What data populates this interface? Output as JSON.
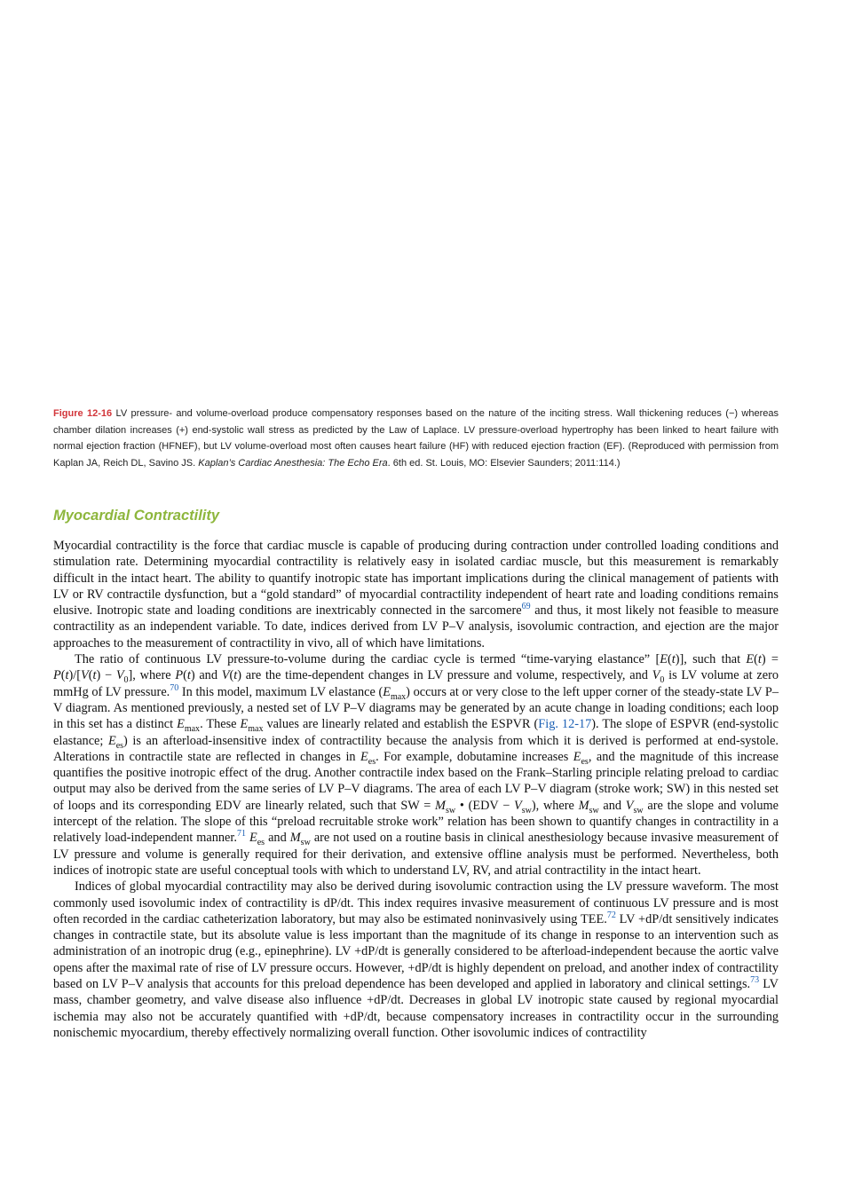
{
  "caption": {
    "runs": [
      {
        "label": "Figure 12-16"
      },
      " LV pressure- and volume-overload produce compensatory responses based on the nature of the inciting stress. Wall thickening reduces (−) whereas chamber dilation increases (+) end-systolic wall stress as predicted by the Law of Laplace. LV pressure-overload hypertrophy has been linked to heart failure with normal ejection fraction (HFNEF), but LV volume-overload most often causes heart failure (HF) with reduced ejection fraction (EF). (Reproduced with permission from Kaplan JA, Reich DL, Savino JS. ",
      {
        "i": "Kaplan’s Cardiac Anesthesia: The Echo Era"
      },
      ". 6th ed. St. Louis, MO: Elsevier Saunders; 2011:114.)"
    ]
  },
  "section": {
    "heading": "Myocardial Contractility",
    "paragraphs": [
      {
        "runs": [
          "Myocardial contractility is the force that cardiac muscle is capable of producing during contraction under controlled loading conditions and stimulation rate. Determining myocardial contractility is relatively easy in isolated cardiac muscle, but this measurement is remarkably difficult in the intact heart. The ability to quantify inotropic state has important implications during the clinical management of patients with LV or RV contractile dysfunction, but a “gold standard” of myocardial contractility independent of heart rate and loading conditions remains elusive. Inotropic state and loading conditions are inextricably connected in the sarcomere",
          {
            "sup": "69"
          },
          " and thus, it most likely not feasible to measure contractility as an independent variable. To date, indices derived from LV P–V analysis, isovolumic contraction, and ejection are the major approaches to the measurement of contractility in vivo, all of which have limitations."
        ]
      },
      {
        "runs": [
          "The ratio of continuous LV pressure-to-volume during the cardiac cycle is termed “time-varying elastance” [",
          {
            "i": "E"
          },
          "(",
          {
            "i": "t"
          },
          ")], such that ",
          {
            "i": "E"
          },
          "(",
          {
            "i": "t"
          },
          ") = ",
          {
            "i": "P"
          },
          "(",
          {
            "i": "t"
          },
          ")/[",
          {
            "i": "V"
          },
          "(",
          {
            "i": "t"
          },
          ") − ",
          {
            "i": "V"
          },
          {
            "sub": "0"
          },
          "], where ",
          {
            "i": "P"
          },
          "(",
          {
            "i": "t"
          },
          ") and ",
          {
            "i": "V"
          },
          "(",
          {
            "i": "t"
          },
          ") are the time-dependent changes in LV pressure and volume, respectively, and ",
          {
            "i": "V"
          },
          {
            "sub": "0"
          },
          " is LV volume at zero mmHg of LV pressure.",
          {
            "sup": "70"
          },
          " In this model, maximum LV elastance (",
          {
            "i": "E"
          },
          {
            "sub": "max"
          },
          ") occurs at or very close to the left upper corner of the steady-state LV P–V diagram. As mentioned previously, a nested set of LV P–V diagrams may be generated by an acute change in loading conditions; each loop in this set has a distinct ",
          {
            "i": "E"
          },
          {
            "sub": "max"
          },
          ". These ",
          {
            "i": "E"
          },
          {
            "sub": "max"
          },
          " values are linearly related and establish the ESPVR (",
          {
            "link": "Fig. 12-17"
          },
          "). The slope of ESPVR (end-systolic elastance; ",
          {
            "i": "E"
          },
          {
            "sub": "es"
          },
          ") is an afterload-insensitive index of contractility because the analysis from which it is derived is performed at end-systole. Alterations in contractile state are reflected in changes in ",
          {
            "i": "E"
          },
          {
            "sub": "es"
          },
          ". For example, dobutamine increases ",
          {
            "i": "E"
          },
          {
            "sub": "es"
          },
          ", and the magnitude of this increase quantifies the positive inotropic effect of the drug. Another contractile index based on the Frank–Starling principle relating preload to cardiac output may also be derived from the same series of LV P–V diagrams. The area of each LV P–V diagram (stroke work; SW) in this nested set of loops and its corresponding EDV are linearly related, such that SW = ",
          {
            "i": "M"
          },
          {
            "sub": "sw"
          },
          " • (EDV − ",
          {
            "i": "V"
          },
          {
            "sub": "sw"
          },
          "), where ",
          {
            "i": "M"
          },
          {
            "sub": "sw"
          },
          " and ",
          {
            "i": "V"
          },
          {
            "sub": "sw"
          },
          " are the slope and volume intercept of the relation. The slope of this “preload recruitable stroke work” relation has been shown to quantify changes in contractility in a relatively load-independent manner.",
          {
            "sup": "71"
          },
          " ",
          {
            "i": "E"
          },
          {
            "sub": "es"
          },
          " and ",
          {
            "i": "M"
          },
          {
            "sub": "sw"
          },
          " are not used on a routine basis in clinical anesthesiology because invasive measurement of LV pressure and volume is generally required for their derivation, and extensive offline analysis must be performed. Nevertheless, both indices of inotropic state are useful conceptual tools with which to understand LV, RV, and atrial contractility in the intact heart."
        ]
      },
      {
        "runs": [
          "Indices of global myocardial contractility may also be derived during isovolumic contraction using the LV pressure waveform. The most commonly used isovolumic index of contractility is dP/dt. This index requires invasive measurement of continuous LV pressure and is most often recorded in the cardiac catheterization laboratory, but may also be estimated noninvasively using TEE.",
          {
            "sup": "72"
          },
          " LV +dP/dt sensitively indicates changes in contractile state, but its absolute value is less important than the magnitude of its change in response to an intervention such as administration of an inotropic drug (e.g., epinephrine). LV +dP/dt is generally considered to be afterload-independent because the aortic valve opens after the maximal rate of rise of LV pressure occurs. However, +dP/dt is highly dependent on preload, and another index of contractility based on LV P–V analysis that accounts for this preload dependence has been developed and applied in laboratory and clinical settings.",
          {
            "sup": "73"
          },
          " LV mass, chamber geometry, and valve disease also influence +dP/dt. Decreases in global LV inotropic state caused by regional myocardial ischemia may also not be accurately quantified with +dP/dt, because compensatory increases in contractility occur in the surrounding nonischemic myocardium, thereby effectively normalizing overall function. Other isovolumic indices of contractility"
        ]
      }
    ]
  }
}
